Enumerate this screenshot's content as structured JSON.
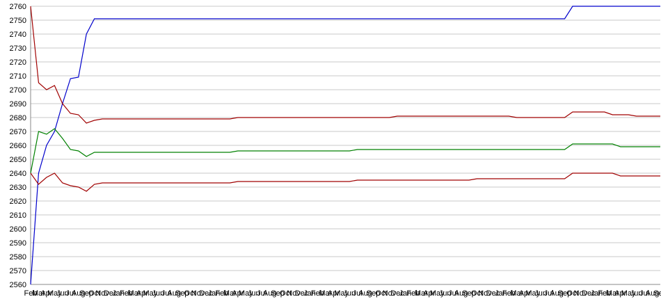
{
  "chart_data": {
    "type": "line",
    "categories": [
      "Feb",
      "Mar",
      "Apr",
      "May",
      "Jun",
      "Jul",
      "Aug",
      "Sep",
      "Oct",
      "Nov",
      "Dec",
      "Jan",
      "Feb",
      "Mar",
      "Apr",
      "May",
      "Jun",
      "Jul",
      "Aug",
      "Sep",
      "Oct",
      "Nov",
      "Dec",
      "Jan",
      "Feb",
      "Mar",
      "Apr",
      "May",
      "Jun",
      "Jul",
      "Aug",
      "Sep",
      "Oct",
      "Nov",
      "Dec",
      "Jan",
      "Feb",
      "Mar",
      "Apr",
      "May",
      "Jun",
      "Jul",
      "Aug",
      "Sep",
      "Oct",
      "Nov",
      "Dec",
      "Jan",
      "Feb",
      "Mar",
      "Apr",
      "May",
      "Jun",
      "Jul",
      "Aug",
      "Sep",
      "Oct",
      "Nov",
      "Dec",
      "Jan",
      "Feb",
      "Mar",
      "Apr",
      "May",
      "Jun",
      "Jul",
      "Aug",
      "Sep",
      "Oct",
      "Nov",
      "Dec",
      "Jan",
      "Feb",
      "Mar",
      "Apr",
      "May",
      "Jun",
      "Jul",
      "Aug",
      "Sep"
    ],
    "series": [
      {
        "color": "#0000cc",
        "values": [
          2560,
          2640,
          2660,
          2670,
          2690,
          2708,
          2709,
          2740,
          2751,
          2751,
          2751,
          2751,
          2751,
          2751,
          2751,
          2751,
          2751,
          2751,
          2751,
          2751,
          2751,
          2751,
          2751,
          2751,
          2751,
          2751,
          2751,
          2751,
          2751,
          2751,
          2751,
          2751,
          2751,
          2751,
          2751,
          2751,
          2751,
          2751,
          2751,
          2751,
          2751,
          2751,
          2751,
          2751,
          2751,
          2751,
          2751,
          2751,
          2751,
          2751,
          2751,
          2751,
          2751,
          2751,
          2751,
          2751,
          2751,
          2751,
          2751,
          2751,
          2751,
          2751,
          2751,
          2751,
          2751,
          2751,
          2751,
          2751,
          2760,
          2760,
          2760,
          2760,
          2760,
          2760,
          2760,
          2760,
          2760,
          2760,
          2760,
          2760
        ]
      },
      {
        "color": "#a00000",
        "values": [
          2760,
          2705,
          2700,
          2703,
          2690,
          2683,
          2682,
          2676,
          2678,
          2679,
          2679,
          2679,
          2679,
          2679,
          2679,
          2679,
          2679,
          2679,
          2679,
          2679,
          2679,
          2679,
          2679,
          2679,
          2679,
          2679,
          2680,
          2680,
          2680,
          2680,
          2680,
          2680,
          2680,
          2680,
          2680,
          2680,
          2680,
          2680,
          2680,
          2680,
          2680,
          2680,
          2680,
          2680,
          2680,
          2680,
          2681,
          2681,
          2681,
          2681,
          2681,
          2681,
          2681,
          2681,
          2681,
          2681,
          2681,
          2681,
          2681,
          2681,
          2681,
          2680,
          2680,
          2680,
          2680,
          2680,
          2680,
          2680,
          2684,
          2684,
          2684,
          2684,
          2684,
          2682,
          2682,
          2682,
          2681,
          2681,
          2681,
          2681
        ]
      },
      {
        "color": "#008000",
        "values": [
          2640,
          2670,
          2668,
          2672,
          2665,
          2657,
          2656,
          2652,
          2655,
          2655,
          2655,
          2655,
          2655,
          2655,
          2655,
          2655,
          2655,
          2655,
          2655,
          2655,
          2655,
          2655,
          2655,
          2655,
          2655,
          2655,
          2656,
          2656,
          2656,
          2656,
          2656,
          2656,
          2656,
          2656,
          2656,
          2656,
          2656,
          2656,
          2656,
          2656,
          2656,
          2657,
          2657,
          2657,
          2657,
          2657,
          2657,
          2657,
          2657,
          2657,
          2657,
          2657,
          2657,
          2657,
          2657,
          2657,
          2657,
          2657,
          2657,
          2657,
          2657,
          2657,
          2657,
          2657,
          2657,
          2657,
          2657,
          2657,
          2661,
          2661,
          2661,
          2661,
          2661,
          2661,
          2659,
          2659,
          2659,
          2659,
          2659,
          2659
        ]
      },
      {
        "color": "#a00000",
        "values": [
          2640,
          2632,
          2637,
          2640,
          2633,
          2631,
          2630,
          2627,
          2632,
          2633,
          2633,
          2633,
          2633,
          2633,
          2633,
          2633,
          2633,
          2633,
          2633,
          2633,
          2633,
          2633,
          2633,
          2633,
          2633,
          2633,
          2634,
          2634,
          2634,
          2634,
          2634,
          2634,
          2634,
          2634,
          2634,
          2634,
          2634,
          2634,
          2634,
          2634,
          2634,
          2635,
          2635,
          2635,
          2635,
          2635,
          2635,
          2635,
          2635,
          2635,
          2635,
          2635,
          2635,
          2635,
          2635,
          2635,
          2636,
          2636,
          2636,
          2636,
          2636,
          2636,
          2636,
          2636,
          2636,
          2636,
          2636,
          2636,
          2640,
          2640,
          2640,
          2640,
          2640,
          2640,
          2638,
          2638,
          2638,
          2638,
          2638,
          2638
        ]
      }
    ],
    "ylim": [
      2560,
      2760
    ],
    "yticks": [
      2560,
      2570,
      2580,
      2590,
      2600,
      2610,
      2620,
      2630,
      2640,
      2650,
      2660,
      2670,
      2680,
      2690,
      2700,
      2710,
      2720,
      2730,
      2740,
      2750,
      2760
    ],
    "grid": true
  }
}
